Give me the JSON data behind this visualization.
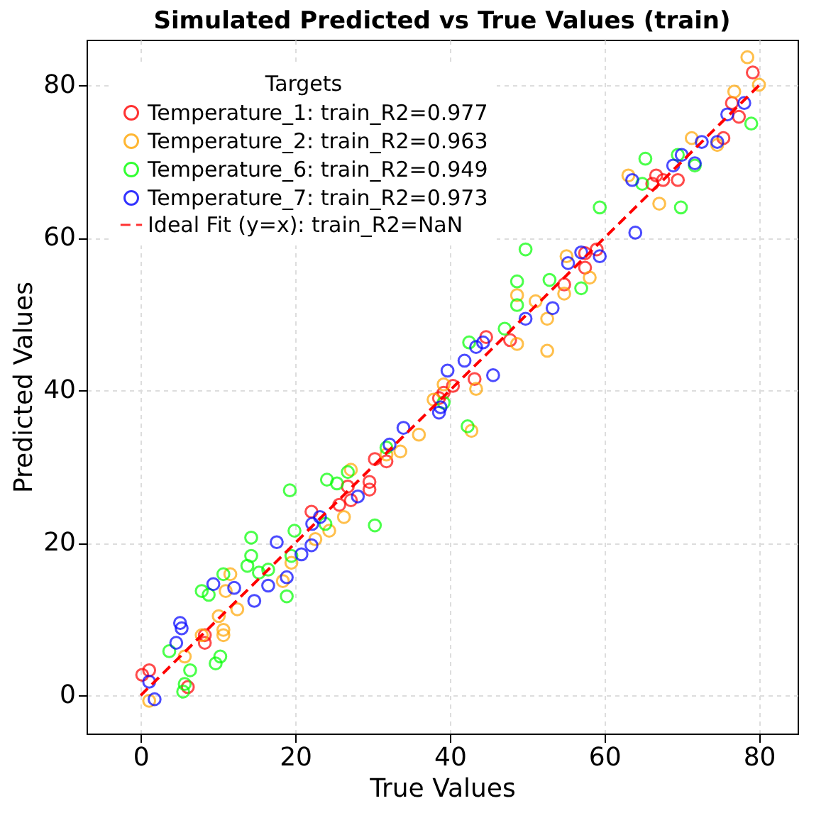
{
  "chart_data": {
    "type": "scatter",
    "title": "Simulated Predicted vs True Values (train)",
    "xlabel": "True Values",
    "ylabel": "Predicted Values",
    "legend_title": "Targets",
    "legend": "top left",
    "grid": true,
    "marker": "circle",
    "xlim": [
      -7,
      85
    ],
    "ylim": [
      -5,
      86
    ],
    "xticks": [
      0,
      20,
      40,
      60,
      80
    ],
    "yticks": [
      0,
      20,
      40,
      60,
      80
    ],
    "series": [
      {
        "name": "Temperature_1: train_R2=0.977",
        "color": "#ff0000",
        "x": [
          0.2,
          1.1,
          6.1,
          8.3,
          8.3,
          22.1,
          25.7,
          27.2,
          29.6,
          26.8,
          29.6,
          30.3,
          31.8,
          40.4,
          39.2,
          44.7,
          47.8,
          54.8,
          57.5,
          57.5,
          59,
          38.6,
          43.2,
          66.7,
          67.6,
          69.5,
          75.4,
          76.5,
          77.4,
          79.2,
          66.2
        ],
        "values": [
          2.7,
          3.3,
          1.1,
          7.9,
          6.9,
          24.1,
          25,
          25.6,
          27,
          27.4,
          28,
          31,
          30.7,
          40.6,
          39.7,
          47,
          46.6,
          53.9,
          56.1,
          58,
          58.5,
          39,
          41.5,
          68.2,
          67.6,
          67.6,
          73.1,
          77.7,
          75.9,
          81.7,
          67.1
        ]
      },
      {
        "name": "Temperature_2: train_R2=0.963",
        "color": "#ffa500",
        "x": [
          1.1,
          5.7,
          7.9,
          10.7,
          10.7,
          10.1,
          12.5,
          11,
          11.6,
          18.4,
          19.5,
          22.6,
          24.4,
          26.3,
          27.2,
          31.8,
          33.6,
          36,
          37.9,
          39.2,
          43.4,
          42.8,
          48.7,
          48.7,
          51.1,
          52.6,
          52.6,
          54.8,
          55.1,
          58.1,
          63.1,
          67.1,
          71.3,
          74.6,
          76.8,
          78.5,
          80
        ],
        "values": [
          -0.7,
          5.1,
          7.9,
          8.6,
          7.9,
          10.4,
          11.3,
          13.7,
          15.9,
          15,
          17.4,
          20.5,
          21.6,
          23.4,
          29.6,
          31.6,
          32,
          34.2,
          38.8,
          40.8,
          40.2,
          34.7,
          52.5,
          46.1,
          51.7,
          49.4,
          45.2,
          52.7,
          57.6,
          54.8,
          68.2,
          64.5,
          73.1,
          72.2,
          79.2,
          83.7,
          80.1
        ]
      },
      {
        "name": "Temperature_6: train_R2=0.949",
        "color": "#00ff00",
        "x": [
          5.5,
          5.7,
          6.4,
          9.7,
          10.3,
          3.7,
          7.9,
          8.8,
          10.7,
          13.8,
          14.3,
          14.3,
          15.3,
          16.5,
          18.9,
          19.3,
          19.9,
          19.5,
          30.3,
          23.9,
          24.1,
          25.4,
          26.8,
          31.8,
          39.2,
          42.3,
          42.5,
          47.1,
          48.7,
          48.7,
          49.8,
          52.9,
          57,
          59.4,
          64.9,
          65.3,
          69.9,
          69.5,
          71.7,
          79
        ],
        "values": [
          0.5,
          1.5,
          3.3,
          4.2,
          5.1,
          5.8,
          13.7,
          13.2,
          15.9,
          17,
          20.7,
          18.3,
          16.1,
          16.5,
          13,
          26.9,
          21.6,
          18.3,
          22.3,
          22.5,
          28.3,
          27.8,
          29.3,
          32.5,
          38.4,
          35.3,
          46.3,
          48.1,
          54.3,
          51.2,
          58.5,
          54.5,
          53.4,
          64,
          67.1,
          70.4,
          64,
          70.9,
          69.5,
          75
        ]
      },
      {
        "name": "Temperature_7: train_R2=0.973",
        "color": "#0000ff",
        "x": [
          1.1,
          1.8,
          5.1,
          5.3,
          4.6,
          9.4,
          12.1,
          14.7,
          16.5,
          17.6,
          18.9,
          20.8,
          22.1,
          22.2,
          23.2,
          28.1,
          32.2,
          34,
          38.6,
          38.8,
          39.7,
          41.9,
          43.4,
          44.3,
          45.6,
          49.8,
          53.3,
          55.3,
          57,
          59.4,
          63.6,
          64,
          68.9,
          70,
          72.6,
          74.6,
          75.9,
          78.1,
          71.7
        ],
        "values": [
          1.8,
          -0.5,
          9.5,
          8.8,
          6.9,
          14.6,
          14.1,
          12.4,
          14.4,
          20.1,
          15.5,
          18.5,
          19.7,
          22.5,
          23.4,
          26.1,
          32.9,
          35.1,
          37.1,
          37.8,
          42.6,
          43.9,
          45.7,
          46.3,
          42,
          49.4,
          50.8,
          56.7,
          58.1,
          57.6,
          67.6,
          60.7,
          69.5,
          70.9,
          72.6,
          72.6,
          76.2,
          77.7,
          69.8
        ]
      },
      {
        "name": "Ideal Fit (y=x): train_R2=NaN",
        "type": "line",
        "color": "#ff0000",
        "line_style": "dashed",
        "marker": "none",
        "x": [
          0,
          80
        ],
        "values": [
          0,
          80
        ]
      }
    ]
  }
}
